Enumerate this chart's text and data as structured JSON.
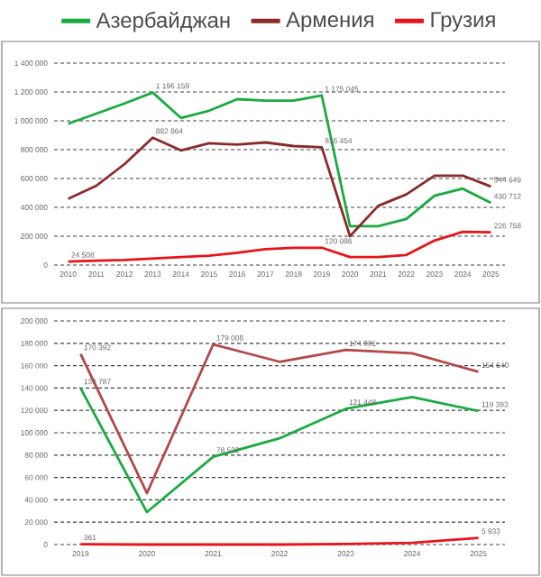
{
  "chart_data": [
    {
      "type": "line",
      "legend": "top",
      "grid": "y",
      "x": [
        2010,
        2011,
        2012,
        2013,
        2014,
        2015,
        2016,
        2017,
        2018,
        2019,
        2020,
        2021,
        2022,
        2023,
        2024,
        2025
      ],
      "xlim": [
        2009.5,
        2025.5
      ],
      "xticks": [
        2010,
        2011,
        2012,
        2013,
        2014,
        2015,
        2016,
        2017,
        2018,
        2019,
        2020,
        2021,
        2022,
        2023,
        2024,
        2025
      ],
      "ylim": [
        0,
        1400000
      ],
      "yticks": [
        0,
        {
          "value": 200000,
          "label": "200 000"
        },
        {
          "value": 400000,
          "label": "400 000"
        },
        {
          "value": 600000,
          "label": "600 000"
        },
        {
          "value": 800000,
          "label": "800 000"
        },
        {
          "value": 1000000,
          "label": "1 000 000"
        },
        {
          "value": 1200000,
          "label": "1 200 000"
        },
        {
          "value": 1400000,
          "label": "1 400 000"
        }
      ],
      "series": [
        {
          "name": "Азербайджан",
          "color": "#1aab40",
          "values": [
            980000,
            1050000,
            1120000,
            1196159,
            1020000,
            1070000,
            1150000,
            1140000,
            1140000,
            1175045,
            270000,
            270000,
            320000,
            480000,
            530000,
            430712
          ],
          "value_labels": [
            null,
            null,
            null,
            "1 196 159",
            null,
            null,
            null,
            null,
            null,
            "1 175 045",
            null,
            null,
            null,
            null,
            null,
            "430 712"
          ]
        },
        {
          "name": "Армения",
          "color": "#8b2a2a",
          "values": [
            460000,
            550000,
            700000,
            882864,
            795000,
            845000,
            835000,
            850000,
            825000,
            816454,
            200000,
            410000,
            490000,
            620000,
            620000,
            544649
          ],
          "value_labels": [
            null,
            null,
            null,
            "882 864",
            null,
            null,
            null,
            null,
            null,
            "816 454",
            null,
            null,
            null,
            null,
            null,
            "544 649"
          ]
        },
        {
          "name": "Грузия",
          "color": "#e8141a",
          "values": [
            24508,
            30000,
            35000,
            45000,
            55000,
            65000,
            85000,
            110000,
            120000,
            120086,
            55000,
            55000,
            70000,
            170000,
            230000,
            226758
          ],
          "value_labels": [
            "24 508",
            null,
            null,
            null,
            null,
            null,
            null,
            null,
            null,
            "120 086",
            null,
            null,
            null,
            null,
            null,
            "226 758"
          ]
        }
      ]
    },
    {
      "type": "line",
      "grid": "y",
      "x": [
        2019,
        2020,
        2021,
        2022,
        2023,
        2024,
        2025
      ],
      "xlim": [
        2018.6,
        2025.4
      ],
      "xticks": [
        2019,
        2020,
        2021,
        2022,
        2023,
        2024,
        2025
      ],
      "ylim": [
        0,
        200000
      ],
      "yticks": [
        0,
        {
          "value": 20000,
          "label": "20 000"
        },
        {
          "value": 40000,
          "label": "40 000"
        },
        {
          "value": 60000,
          "label": "60 000"
        },
        {
          "value": 80000,
          "label": "80 000"
        },
        {
          "value": 100000,
          "label": "100 000"
        },
        {
          "value": 120000,
          "label": "120 000"
        },
        {
          "value": 140000,
          "label": "140 000"
        },
        {
          "value": 160000,
          "label": "160 000"
        },
        {
          "value": 180000,
          "label": "180 000"
        },
        {
          "value": 200000,
          "label": "200 000"
        }
      ],
      "series": [
        {
          "color": "#b5474a",
          "values": [
            170392,
            46000,
            179008,
            163500,
            174081,
            171000,
            154540
          ],
          "value_labels": [
            "170 392",
            null,
            "179 008",
            null,
            "174 081",
            null,
            "154 540"
          ]
        },
        {
          "color": "#1aab40",
          "values": [
            139787,
            29000,
            78532,
            95000,
            121448,
            132000,
            119393
          ],
          "value_labels": [
            "139 787",
            null,
            "78 532",
            null,
            "121 448",
            null,
            "119 393"
          ]
        },
        {
          "color": "#e8141a",
          "values": [
            361,
            0,
            0,
            0,
            500,
            1500,
            5933
          ],
          "value_labels": [
            "361",
            null,
            null,
            null,
            null,
            null,
            "5 933"
          ]
        }
      ]
    }
  ]
}
